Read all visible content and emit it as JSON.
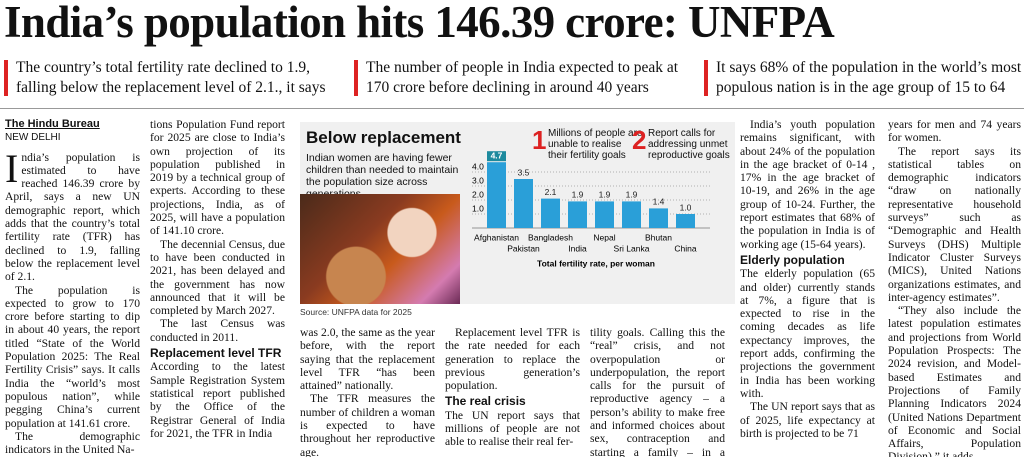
{
  "headline": "India’s population hits 146.39 crore: UNFPA",
  "decks": [
    "The country’s total fertility rate declined to 1.9, falling below the replacement level of 2.1., it says",
    "The number of people in India expected to peak at 170 crore before declining in around 40 years",
    "It says 68% of the population in the world’s most populous nation is in the age group of 15 to 64"
  ],
  "byline": {
    "author": "The Hindu Bureau",
    "dateline": "NEW DELHI"
  },
  "columns": [
    [
      {
        "text": "India’s population is estimated to have reached 146.39 crore by April, says a new UN demographic report, which adds that the country’s total fertility rate (TFR) has declined to 1.9, falling below the replacement level of 2.1."
      },
      {
        "text": "The population is expected to grow to 170 crore before starting to dip in about 40 years, the report titled “State of the World Population 2025: The Real Fertility Crisis” says. It calls India the “world’s most populous nation”, while pegging China’s current population at 141.61 crore."
      },
      {
        "text": "The demographic indicators in the United Na-"
      }
    ],
    [
      {
        "text": "tions Population Fund report for 2025 are close to India’s own projection of its population published in 2019 by a technical group of experts. According to these projections, India, as of 2025, will have a population of 141.10 crore."
      },
      {
        "text": "The decennial Census, due to have been conducted in 2021, has been delayed and the government has now announced that it will be completed by March 2027."
      },
      {
        "text": "The last Census was conducted in 2011."
      },
      {
        "heading": "Replacement level TFR"
      },
      {
        "text": "According to the latest Sample Registration System statistical report published by the Office of the Registrar General of India for 2021, the TFR in India"
      }
    ],
    [
      {
        "text": "was 2.0, the same as the year before, with the report saying that the replacement level TFR “has been attained” nationally."
      },
      {
        "text": "The TFR measures the number of children a woman is expected to have throughout her reproductive age."
      }
    ],
    [
      {
        "text": "Replacement level TFR is the rate needed for each generation to replace the previous generation’s population."
      },
      {
        "heading": "The real crisis"
      },
      {
        "text": "The UN report says that millions of people are not able to realise their real fer-"
      }
    ],
    [
      {
        "text": "tility goals. Calling this the “real” crisis, and not overpopulation or underpopulation, the report calls for the pursuit of reproductive agency – a person’s ability to make free and informed choices about sex, contraception and starting a family – in a changing world."
      }
    ],
    [
      {
        "text": "India’s youth population remains significant, with about 24% of the population in the age bracket of 0-14 , 17% in the age bracket of 10-19, and 26% in the age group of 10-24. Further, the report estimates that 68% of the population in India is of working age (15-64 years)."
      },
      {
        "heading": "Elderly population"
      },
      {
        "text": "The elderly population (65 and older) currently stands at 7%, a figure that is expected to rise in the coming decades as life expectancy improves, the report adds, confirming the projections the government in India has been working with."
      },
      {
        "text": "The UN report says that as of 2025, life expectancy at birth is projected to be 71"
      }
    ],
    [
      {
        "text": "years for men and 74 years for women."
      },
      {
        "text": "The report says its statistical tables on demographic indicators “draw on nationally representative household surveys” such as “Demographic and Health Surveys (DHS) Multiple Indicator Cluster Surveys (MICS), United Nations organizations estimates, and inter-agency estimates”."
      },
      {
        "text": "“They also include the latest population estimates and projections from World Population Prospects: The 2024 revision, and Model-based Estimates and Projections of Family Planning Indicators 2024 (United Nations Department of Economic and Social Affairs, Population Division),” it adds."
      }
    ]
  ],
  "chart_data": {
    "type": "bar",
    "title": "Below replacement",
    "subtitle": "Indian women are having fewer children than needed to maintain the population size across generations",
    "annotations": [
      {
        "number": "1",
        "text": "Millions of people are unable to realise their fertility goals"
      },
      {
        "number": "2",
        "text": "Report calls for addressing unmet reproductive goals"
      }
    ],
    "categories": [
      "Afghanistan",
      "Pakistan",
      "Bangladesh",
      "India",
      "Nepal",
      "Sri Lanka",
      "Bhutan",
      "China"
    ],
    "values": [
      4.7,
      3.5,
      2.1,
      1.9,
      1.9,
      1.9,
      1.4,
      1.0
    ],
    "value_labels": [
      "4.7",
      "3.5",
      "2.1",
      "1.9",
      "1.9",
      "1.9",
      "1.4",
      "1.0"
    ],
    "color": "#2a9fd8",
    "ylim": [
      0,
      5
    ],
    "yticks": [
      {
        "value": 1,
        "label": "1.0"
      },
      {
        "value": 2,
        "label": "2.0"
      },
      {
        "value": 3,
        "label": "3.0"
      },
      {
        "value": 4,
        "label": "4.0"
      }
    ],
    "grid": true,
    "xlabel": "Total fertility rate, per woman",
    "source": "Source: UNFPA data for 2025"
  }
}
